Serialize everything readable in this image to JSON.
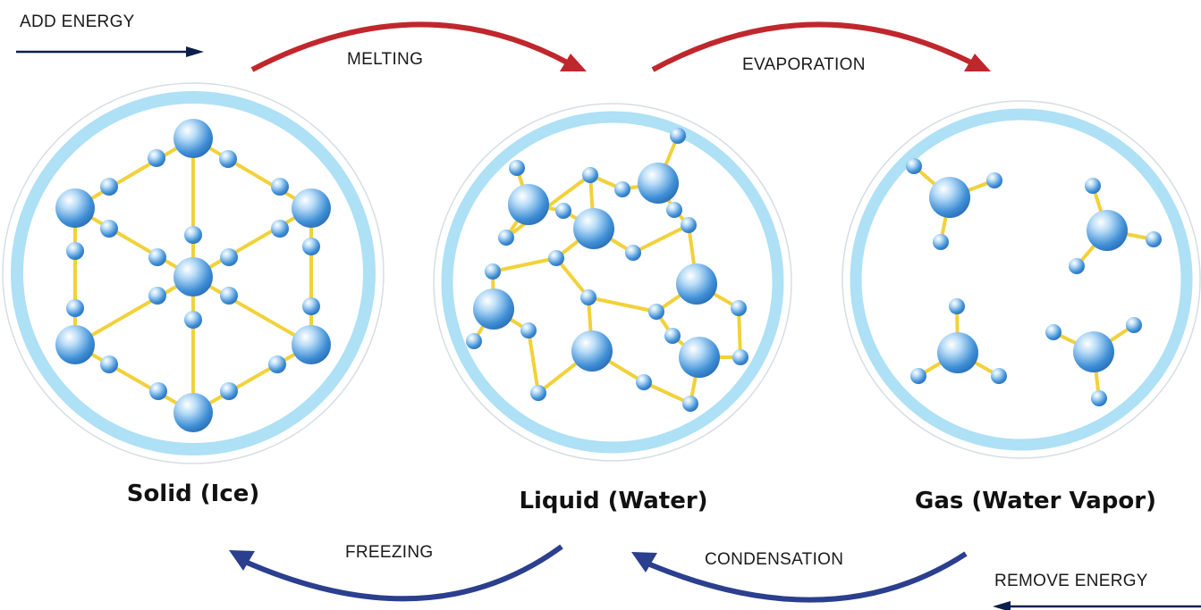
{
  "energy": {
    "add": "ADD ENERGY",
    "remove": "REMOVE ENERGY"
  },
  "transitions": {
    "melting": "MELTING",
    "evaporation": "EVAPORATION",
    "freezing": "FREEZING",
    "condensation": "CONDENSATION"
  },
  "states": {
    "solid": "Solid (Ice)",
    "liquid": "Liquid (Water)",
    "gas": "Gas (Water Vapor)"
  },
  "colors": {
    "heating_arrow": "#c0272d",
    "cooling_arrow": "#2b3f8f",
    "energy_arrow": "#0b1f4d",
    "ring": "#aee0f6",
    "bond": "#f2d13a",
    "molecule": "#3f8fd6"
  }
}
